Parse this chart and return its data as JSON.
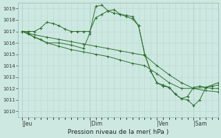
{
  "background_color": "#cce8e0",
  "grid_color_minor": "#b8d8d0",
  "grid_color_major": "#a0c8c0",
  "line_color": "#2d6e2d",
  "title": "Pression niveau de la mer( hPa )",
  "ylim": [
    1009.5,
    1019.5
  ],
  "yticks": [
    1010,
    1011,
    1012,
    1013,
    1014,
    1015,
    1016,
    1017,
    1018,
    1019
  ],
  "xtick_labels": [
    "|Jeu",
    "|Dim",
    "|Ven",
    "|Sam"
  ],
  "xtick_positions": [
    0,
    33,
    66,
    84
  ],
  "xlim": [
    -2,
    96
  ],
  "series1": {
    "x": [
      0,
      3,
      6,
      9,
      12,
      15,
      18,
      21,
      24,
      27,
      30,
      33,
      36,
      39,
      42,
      45,
      48,
      51,
      54,
      57,
      60,
      63,
      66,
      69,
      72,
      75,
      78,
      81,
      84,
      87,
      90,
      93,
      96
    ],
    "y": [
      1017.0,
      1017.0,
      1017.0,
      1017.3,
      1017.8,
      1017.7,
      1017.5,
      1017.2,
      1017.0,
      1017.0,
      1017.0,
      1017.0,
      1018.2,
      1018.5,
      1018.8,
      1018.9,
      1018.5,
      1018.3,
      1018.1,
      1017.5,
      1015.0,
      1013.5,
      1012.5,
      1012.3,
      1012.1,
      1011.5,
      1011.1,
      1011.3,
      1012.1,
      1012.2,
      1012.1,
      1012.2,
      1012.3
    ]
  },
  "series2": {
    "x": [
      0,
      3,
      6,
      9,
      12,
      18,
      24,
      30,
      33,
      36,
      39,
      42,
      45,
      48,
      51,
      54,
      57,
      60,
      63,
      66,
      69,
      72,
      75,
      78,
      81,
      84,
      87,
      90,
      93,
      96
    ],
    "y": [
      1017.0,
      1016.8,
      1016.5,
      1016.3,
      1016.0,
      1016.0,
      1015.8,
      1015.5,
      1016.8,
      1019.2,
      1019.3,
      1018.8,
      1018.6,
      1018.5,
      1018.4,
      1018.3,
      1017.5,
      1015.0,
      1013.5,
      1012.5,
      1012.2,
      1012.1,
      1011.5,
      1011.1,
      1011.0,
      1010.5,
      1011.0,
      1012.1,
      1012.0,
      1012.0
    ]
  },
  "series3": {
    "x": [
      0,
      6,
      12,
      18,
      24,
      30,
      36,
      42,
      48,
      54,
      60,
      66,
      72,
      78,
      84,
      90,
      96
    ],
    "y": [
      1017.0,
      1016.7,
      1016.5,
      1016.3,
      1016.1,
      1015.9,
      1015.7,
      1015.5,
      1015.3,
      1015.1,
      1014.9,
      1014.0,
      1013.2,
      1012.5,
      1012.0,
      1011.8,
      1011.7
    ]
  },
  "series4": {
    "x": [
      0,
      6,
      12,
      18,
      24,
      30,
      36,
      42,
      48,
      54,
      60,
      66,
      72,
      78,
      84,
      90,
      96
    ],
    "y": [
      1017.0,
      1016.5,
      1016.0,
      1015.7,
      1015.4,
      1015.2,
      1015.0,
      1014.8,
      1014.5,
      1014.2,
      1014.0,
      1013.3,
      1012.5,
      1012.0,
      1012.0,
      1012.1,
      1012.5
    ]
  }
}
